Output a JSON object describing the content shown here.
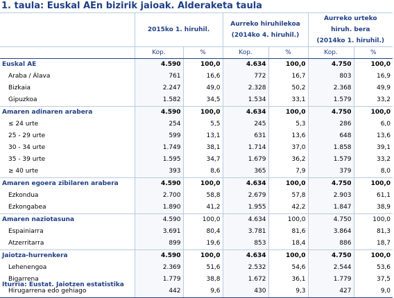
{
  "title": "1. taula: Euskal AEn bizirik jaioak. Alderaketa taula",
  "header": {
    "col1": "2015ko 1. hiruhil.",
    "col2_line1": "Aurreko hiruhilekoa",
    "col2_line2": "(2014ko 4. hiruhil.)",
    "col3_line1": "Aurreko urteko",
    "col3_line2": "hiruh. bera",
    "col3_line3": "(2014ko 1. hiruhil.)"
  },
  "subheader": [
    "Kop.",
    "%",
    "Kop.",
    "%",
    "Kop.",
    "%"
  ],
  "rows": [
    {
      "label": "Euskal AE",
      "values": [
        "4.590",
        "100,0",
        "4.634",
        "100,0",
        "4.750",
        "100,0"
      ]
    },
    {
      "label": "Araba / Álava",
      "values": [
        "761",
        "16,6",
        "772",
        "16,7",
        "803",
        "16,9"
      ]
    },
    {
      "label": "Bizkaia",
      "values": [
        "2.247",
        "49,0",
        "2.328",
        "50,2",
        "2.368",
        "49,9"
      ]
    },
    {
      "label": "Gipuzkoa",
      "values": [
        "1.582",
        "34,5",
        "1.534",
        "33,1",
        "1.579",
        "33,2"
      ]
    },
    {
      "label": "Amaren adinaren arabera",
      "values": [
        "4.590",
        "100,0",
        "4.634",
        "100,0",
        "4.750",
        "100,0"
      ]
    },
    {
      "label": "≤ 24 urte",
      "values": [
        "254",
        "5,5",
        "245",
        "5,3",
        "286",
        "6,0"
      ]
    },
    {
      "label": "25 - 29 urte",
      "values": [
        "599",
        "13,1",
        "631",
        "13,6",
        "648",
        "13,6"
      ]
    },
    {
      "label": "30 - 34 urte",
      "values": [
        "1.749",
        "38,1",
        "1.714",
        "37,0",
        "1.858",
        "39,1"
      ]
    },
    {
      "label": "35 - 39 urte",
      "values": [
        "1.595",
        "34,7",
        "1.679",
        "36,2",
        "1.579",
        "33,2"
      ]
    },
    {
      "label": "≥ 40 urte",
      "values": [
        "393",
        "8,6",
        "365",
        "7,9",
        "379",
        "8,0"
      ]
    },
    {
      "label": "Amaren egoera zibilaren arabera",
      "values": [
        "4.590",
        "100,0",
        "4.634",
        "100,0",
        "4.750",
        "100,0"
      ]
    },
    {
      "label": "Ezkondua",
      "values": [
        "2.700",
        "58,8",
        "2.679",
        "57,8",
        "2.903",
        "61,1"
      ]
    },
    {
      "label": "Ezkongabea",
      "values": [
        "1.890",
        "41,2",
        "1.955",
        "42,2",
        "1.847",
        "38,9"
      ]
    },
    {
      "label": "Amaren naziotasuna",
      "values": [
        "4.590",
        "100,0",
        "4.634",
        "100,0",
        "4.750",
        "100,0"
      ]
    },
    {
      "label": "Espainiarra",
      "values": [
        "3.691",
        "80,4",
        "3.781",
        "81,6",
        "3.864",
        "81,3"
      ]
    },
    {
      "label": "Atzerritarra",
      "values": [
        "899",
        "19,6",
        "853",
        "18,4",
        "886",
        "18,7"
      ]
    },
    {
      "label": "Jaiotza-hurrenkera",
      "values": [
        "4.590",
        "100,0",
        "4.634",
        "100,0",
        "4.750",
        "100,0"
      ]
    },
    {
      "label": "Lehenengoa",
      "values": [
        "2.369",
        "51,6",
        "2.532",
        "54,6",
        "2.544",
        "53,6"
      ]
    },
    {
      "label": "Bigarrena",
      "values": [
        "1.779",
        "38,8",
        "1.672",
        "36,1",
        "1.779",
        "37,5"
      ]
    },
    {
      "label": "Hirugarrena edo gehiago",
      "values": [
        "442",
        "9,6",
        "430",
        "9,3",
        "427",
        "9,0"
      ]
    }
  ],
  "source": "Iturria: Eustat. Jaiotzen estatistika"
}
